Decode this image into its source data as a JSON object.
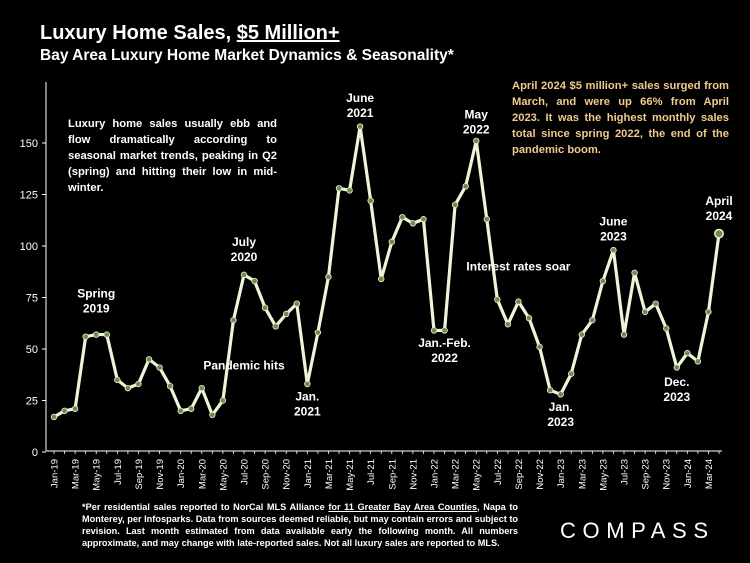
{
  "header": {
    "title_prefix": "Luxury Home Sales, ",
    "title_underlined": "$5 Million+",
    "subtitle": "Bay Area Luxury Home Market Dynamics & Seasonality*"
  },
  "notes": {
    "left": "Luxury home sales usually ebb and flow dramatically according to seasonal market trends, peaking in Q2 (spring) and hitting their low in mid-winter.",
    "right": "April 2024 $5 million+ sales surged from March, and were up 66% from April 2023. It was the highest monthly sales total since spring 2022, the end of the pandemic boom."
  },
  "footnote": {
    "part1": "*Per residential sales reported to NorCal MLS Alliance ",
    "link": "for 11 Greater Bay Area Counties",
    "part2": ", Napa to Monterey, per Infosparks. Data from sources deemed reliable, but may contain errors and subject to revision. Last month estimated from data available early the following month. All numbers approximate, and may change with late-reported sales. Not all luxury sales are reported to MLS."
  },
  "brand": {
    "logo": "COMPASS"
  },
  "colors": {
    "line": "#ecf5d8",
    "marker": "#6e8a4c",
    "accent_note": "#f2c98e",
    "background": "#000000"
  },
  "chart_data": {
    "type": "line",
    "ylim": [
      0,
      160
    ],
    "yticks": [
      "0",
      "25",
      "50",
      "75",
      "100",
      "125",
      "150"
    ],
    "grid": false,
    "x_tick_labels": [
      "Jan-19",
      "Mar-19",
      "May-19",
      "Jul-19",
      "Sep-19",
      "Nov-19",
      "Jan-20",
      "Mar-20",
      "May-20",
      "Jul-20",
      "Sep-20",
      "Nov-20",
      "Jan-21",
      "Mar-21",
      "May-21",
      "Jul-21",
      "Sep-21",
      "Nov-21",
      "Jan-22",
      "Mar-22",
      "May-22",
      "Jul-22",
      "Sep-22",
      "Nov-22",
      "Jan-23",
      "Mar-23",
      "May-23",
      "Jul-23",
      "Sep-23",
      "Nov-23",
      "Jan-24",
      "Mar-24"
    ],
    "x": [
      "Jan-19",
      "Feb-19",
      "Mar-19",
      "Apr-19",
      "May-19",
      "Jun-19",
      "Jul-19",
      "Aug-19",
      "Sep-19",
      "Oct-19",
      "Nov-19",
      "Dec-19",
      "Jan-20",
      "Feb-20",
      "Mar-20",
      "Apr-20",
      "May-20",
      "Jun-20",
      "Jul-20",
      "Aug-20",
      "Sep-20",
      "Oct-20",
      "Nov-20",
      "Dec-20",
      "Jan-21",
      "Feb-21",
      "Mar-21",
      "Apr-21",
      "May-21",
      "Jun-21",
      "Jul-21",
      "Aug-21",
      "Sep-21",
      "Oct-21",
      "Nov-21",
      "Dec-21",
      "Jan-22",
      "Feb-22",
      "Mar-22",
      "Apr-22",
      "May-22",
      "Jun-22",
      "Jul-22",
      "Aug-22",
      "Sep-22",
      "Oct-22",
      "Nov-22",
      "Dec-22",
      "Jan-23",
      "Feb-23",
      "Mar-23",
      "Apr-23",
      "May-23",
      "Jun-23",
      "Jul-23",
      "Aug-23",
      "Sep-23",
      "Oct-23",
      "Nov-23",
      "Dec-23",
      "Jan-24",
      "Feb-24",
      "Mar-24",
      "Apr-24"
    ],
    "values": [
      17,
      20,
      21,
      56,
      57,
      57,
      35,
      31,
      33,
      45,
      41,
      32,
      20,
      21,
      31,
      18,
      25,
      64,
      86,
      83,
      70,
      61,
      67,
      72,
      33,
      58,
      85,
      128,
      127,
      158,
      122,
      84,
      102,
      114,
      111,
      113,
      59,
      59,
      120,
      129,
      151,
      113,
      74,
      62,
      73,
      65,
      51,
      30,
      28,
      38,
      57,
      64,
      83,
      98,
      57,
      87,
      68,
      72,
      60,
      41,
      48,
      44,
      68,
      106
    ],
    "annotations": [
      {
        "lines": [
          "Spring",
          "2019"
        ],
        "x": "May-19",
        "y": 75
      },
      {
        "lines": [
          "July",
          "2020"
        ],
        "x": "Jul-20",
        "y": 100
      },
      {
        "lines": [
          "Pandemic hits"
        ],
        "x": "Jul-20",
        "y": 40
      },
      {
        "lines": [
          "June",
          "2021"
        ],
        "x": "Jun-21",
        "y": 170
      },
      {
        "lines": [
          "Jan.",
          "2021"
        ],
        "x": "Jan-21",
        "y": 25
      },
      {
        "lines": [
          "May",
          "2022"
        ],
        "x": "May-22",
        "y": 162
      },
      {
        "lines": [
          "Jan.-Feb.",
          "2022"
        ],
        "x": "Feb-22",
        "y": 51
      },
      {
        "lines": [
          "Interest rates soar"
        ],
        "x": "Sep-22",
        "y": 88
      },
      {
        "lines": [
          "June",
          "2023"
        ],
        "x": "Jun-23",
        "y": 110
      },
      {
        "lines": [
          "Jan.",
          "2023"
        ],
        "x": "Jan-23",
        "y": 20
      },
      {
        "lines": [
          "Dec.",
          "2023"
        ],
        "x": "Dec-23",
        "y": 32
      },
      {
        "lines": [
          "April",
          "2024"
        ],
        "x": "Apr-24",
        "y": 120
      }
    ]
  }
}
